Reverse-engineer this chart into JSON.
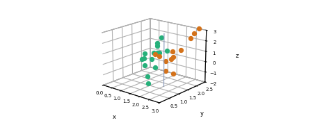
{
  "green_points": [
    [
      0.7,
      1.5,
      -0.8
    ],
    [
      1.0,
      1.2,
      0.7
    ],
    [
      1.1,
      1.8,
      1.1
    ],
    [
      1.2,
      1.0,
      0.5
    ],
    [
      1.3,
      0.8,
      0.6
    ],
    [
      1.4,
      1.5,
      0.8
    ],
    [
      1.5,
      1.2,
      1.0
    ],
    [
      1.5,
      1.6,
      2.2
    ],
    [
      1.6,
      1.0,
      0.6
    ],
    [
      1.6,
      1.4,
      0.9
    ],
    [
      1.7,
      0.7,
      -0.8
    ],
    [
      1.7,
      1.2,
      2.0
    ],
    [
      1.8,
      1.0,
      -0.1
    ],
    [
      1.8,
      1.6,
      1.1
    ],
    [
      1.5,
      0.9,
      -1.7
    ]
  ],
  "orange_points": [
    [
      2.2,
      0.8,
      1.3
    ],
    [
      2.3,
      0.5,
      1.7
    ],
    [
      2.5,
      1.2,
      1.6
    ],
    [
      2.6,
      0.7,
      1.1
    ],
    [
      2.7,
      1.0,
      1.3
    ],
    [
      2.8,
      0.8,
      1.3
    ],
    [
      2.8,
      0.5,
      0.4
    ],
    [
      2.9,
      1.2,
      1.9
    ],
    [
      3.0,
      0.7,
      0.1
    ],
    [
      3.0,
      1.8,
      3.1
    ],
    [
      2.9,
      2.2,
      3.3
    ],
    [
      3.0,
      1.6,
      2.8
    ]
  ],
  "green_color": "#26b07a",
  "orange_color": "#d4721a",
  "separator_color": "#8899bb",
  "xlim": [
    0.0,
    3.0
  ],
  "ylim": [
    0.0,
    2.5
  ],
  "zlim": [
    -2.0,
    3.0
  ],
  "xlabel": "x",
  "ylabel": "y",
  "zlabel": "z",
  "xticks": [
    0.0,
    0.5,
    1.0,
    1.5,
    2.0,
    2.5,
    3.0
  ],
  "yticks": [
    0.5,
    1.0,
    1.5,
    2.0,
    2.5
  ],
  "zticks": [
    -2,
    -1,
    0,
    1,
    2,
    3
  ],
  "separator_x": 2.0,
  "point_size": 18,
  "elev": 18,
  "azim": -50,
  "figsize": [
    4.73,
    1.9
  ],
  "dpi": 100
}
